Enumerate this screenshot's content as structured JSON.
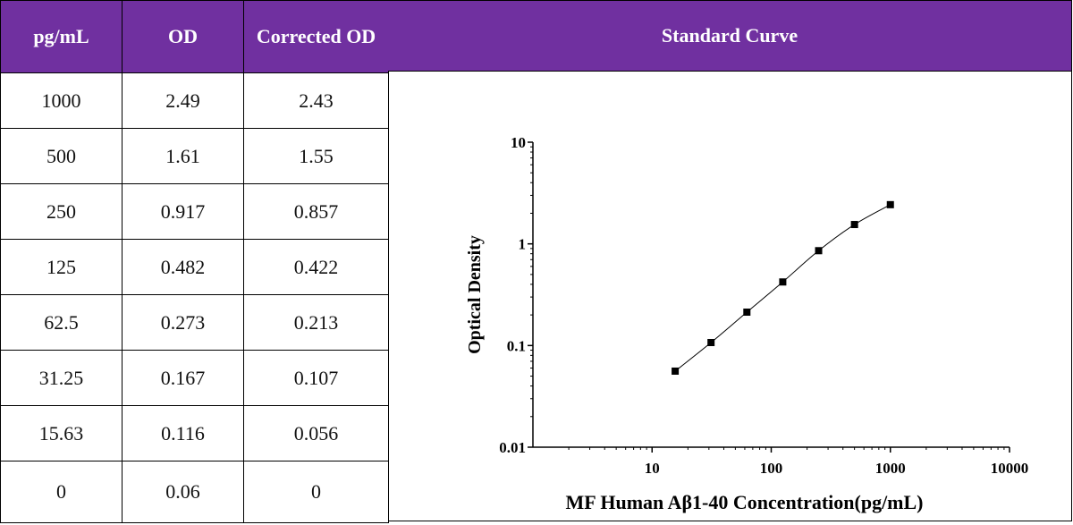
{
  "table": {
    "headers": [
      "pg/mL",
      "OD",
      "Corrected OD"
    ],
    "rows": [
      [
        "1000",
        "2.49",
        "2.43"
      ],
      [
        "500",
        "1.61",
        "1.55"
      ],
      [
        "250",
        "0.917",
        "0.857"
      ],
      [
        "125",
        "0.482",
        "0.422"
      ],
      [
        "62.5",
        "0.273",
        "0.213"
      ],
      [
        "31.25",
        "0.167",
        "0.107"
      ],
      [
        "15.63",
        "0.116",
        "0.056"
      ],
      [
        "0",
        "0.06",
        "0"
      ]
    ]
  },
  "header_colors": {
    "fill": "#7030a0",
    "text": "#ffffff"
  },
  "chart_header": "Standard Curve",
  "chart_data": {
    "type": "scatter",
    "title": "",
    "xlabel": "MF Human Aβ1-40 Concentration(pg/mL)",
    "ylabel": "Optical Density",
    "xscale": "log",
    "yscale": "log",
    "xlim": [
      1,
      10000
    ],
    "ylim": [
      0.01,
      10
    ],
    "xticks": [
      10,
      100,
      1000,
      10000
    ],
    "xtick_labels": [
      "10",
      "100",
      "1000",
      "10000"
    ],
    "yticks": [
      0.01,
      0.1,
      1,
      10
    ],
    "ytick_labels": [
      "0.01",
      "0.1",
      "1",
      "10"
    ],
    "grid": false,
    "marker": "square",
    "fit_line": true,
    "series": [
      {
        "x": [
          15.63,
          31.25,
          62.5,
          125,
          250,
          500,
          1000
        ],
        "y": [
          0.056,
          0.107,
          0.213,
          0.422,
          0.857,
          1.55,
          2.43
        ]
      }
    ]
  }
}
